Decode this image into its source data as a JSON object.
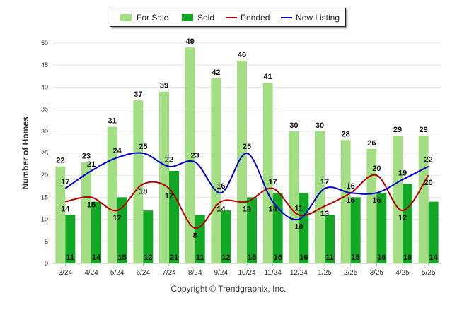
{
  "chart_data": {
    "type": "bar",
    "ylabel": "Number of Homes",
    "xlabel": "",
    "ylim": [
      0,
      50
    ],
    "yticks": [
      "0",
      "5",
      "10",
      "15",
      "20",
      "25",
      "30",
      "35",
      "40",
      "45",
      "50"
    ],
    "categories": [
      "3/24",
      "4/24",
      "5/24",
      "6/24",
      "7/24",
      "8/24",
      "9/24",
      "10/24",
      "11/24",
      "12/24",
      "1/25",
      "2/25",
      "3/25",
      "4/25",
      "5/25"
    ],
    "grid": "horizontal",
    "legend_position": "top-center",
    "series": [
      {
        "name": "For Sale",
        "kind": "bar",
        "color": "#a3de85",
        "values": [
          22,
          23,
          31,
          37,
          39,
          49,
          42,
          46,
          41,
          30,
          30,
          28,
          26,
          29,
          29
        ]
      },
      {
        "name": "Sold",
        "kind": "bar",
        "color": "#12a825",
        "values": [
          11,
          14,
          15,
          12,
          21,
          11,
          12,
          15,
          16,
          16,
          11,
          15,
          16,
          18,
          14
        ]
      },
      {
        "name": "Pended",
        "kind": "line",
        "color": "#b40000",
        "values": [
          14,
          15,
          12,
          18,
          17,
          8,
          14,
          14,
          17,
          11,
          13,
          16,
          20,
          12,
          20
        ]
      },
      {
        "name": "New Listing",
        "kind": "line",
        "color": "#0000d0",
        "values": [
          17,
          21,
          24,
          25,
          22,
          23,
          16,
          25,
          14,
          10,
          17,
          16,
          16,
          19,
          22
        ]
      }
    ]
  },
  "footer": {
    "copyright": "Copyright © Trendgraphix, Inc."
  }
}
